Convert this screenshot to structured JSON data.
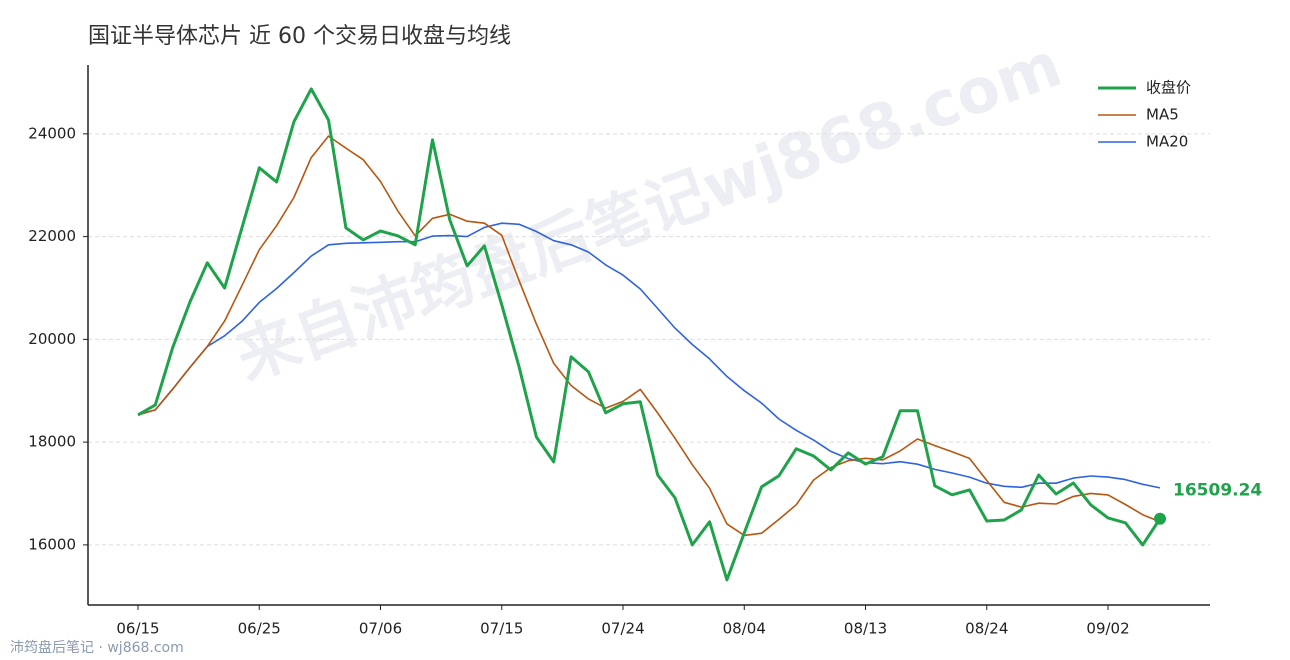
{
  "chart_data": {
    "type": "line",
    "title": "国证半导体芯片 近 60 个交易日收盘与均线",
    "watermark": "来自沛筠盘后笔记wj868.com",
    "footer": "沛筠盘后笔记 · wj868.com",
    "categories": [
      "06/15",
      null,
      null,
      null,
      null,
      null,
      null,
      "06/25",
      null,
      null,
      null,
      null,
      null,
      null,
      "07/06",
      null,
      null,
      null,
      null,
      null,
      null,
      "07/15",
      null,
      null,
      null,
      null,
      null,
      null,
      "07/24",
      null,
      null,
      null,
      null,
      null,
      null,
      "08/04",
      null,
      null,
      null,
      null,
      null,
      null,
      "08/13",
      null,
      null,
      null,
      null,
      null,
      null,
      "08/24",
      null,
      null,
      null,
      null,
      null,
      null,
      "09/02",
      null,
      null,
      null
    ],
    "series": [
      {
        "name": "收盘价",
        "color": "#1fa34a",
        "values": [
          18530,
          18725,
          19835,
          20730,
          21490,
          21000,
          22170,
          23340,
          23065,
          24235,
          24875,
          24270,
          22170,
          21935,
          22110,
          22015,
          21840,
          23885,
          22325,
          21430,
          21820,
          20670,
          19465,
          18100,
          17615,
          19660,
          19370,
          18570,
          18745,
          18785,
          17360,
          16915,
          16000,
          16450,
          15320,
          16235,
          17130,
          17345,
          17870,
          17730,
          17460,
          17790,
          17575,
          17715,
          18610,
          18610,
          17150,
          16975,
          17070,
          16465,
          16485,
          16680,
          17360,
          16990,
          17205,
          16780,
          16525,
          16430,
          16000,
          16509.24
        ]
      },
      {
        "name": "MA5",
        "color": "#b8560f",
        "values": [
          18530,
          18628,
          19030,
          19455,
          19862,
          20356,
          21045,
          21746,
          22213,
          22762,
          23537,
          23957,
          23723,
          23497,
          23072,
          22500,
          22014,
          22357,
          22435,
          22299,
          22260,
          22026,
          21142,
          20297,
          19534,
          19102,
          18842,
          18663,
          18792,
          19026,
          18566,
          18075,
          17561,
          17102,
          16409,
          16184,
          16227,
          16496,
          16780,
          17262,
          17507,
          17639,
          17685,
          17654,
          17830,
          18060,
          17932,
          17812,
          17683,
          17254,
          16829,
          16735,
          16812,
          16796,
          16944,
          17003,
          16972,
          16786,
          16588,
          16449
        ]
      },
      {
        "name": "MA20",
        "color": "#2f63e0",
        "values": [
          18530,
          18628,
          19030,
          19455,
          19862,
          20070,
          20350,
          20720,
          20990,
          21300,
          21620,
          21840,
          21870,
          21880,
          21890,
          21900,
          21900,
          22010,
          22020,
          22000,
          22180,
          22260,
          22240,
          22100,
          21920,
          21840,
          21700,
          21450,
          21250,
          20980,
          20600,
          20220,
          19900,
          19620,
          19280,
          19000,
          18760,
          18450,
          18230,
          18040,
          17820,
          17680,
          17600,
          17580,
          17620,
          17570,
          17470,
          17400,
          17320,
          17200,
          17140,
          17120,
          17200,
          17200,
          17300,
          17340,
          17320,
          17270,
          17180,
          17110
        ]
      }
    ],
    "ylim": [
      14830,
      25340
    ],
    "yticks": [
      16000,
      18000,
      20000,
      22000,
      24000
    ],
    "grid": true,
    "legend": "upper right"
  }
}
